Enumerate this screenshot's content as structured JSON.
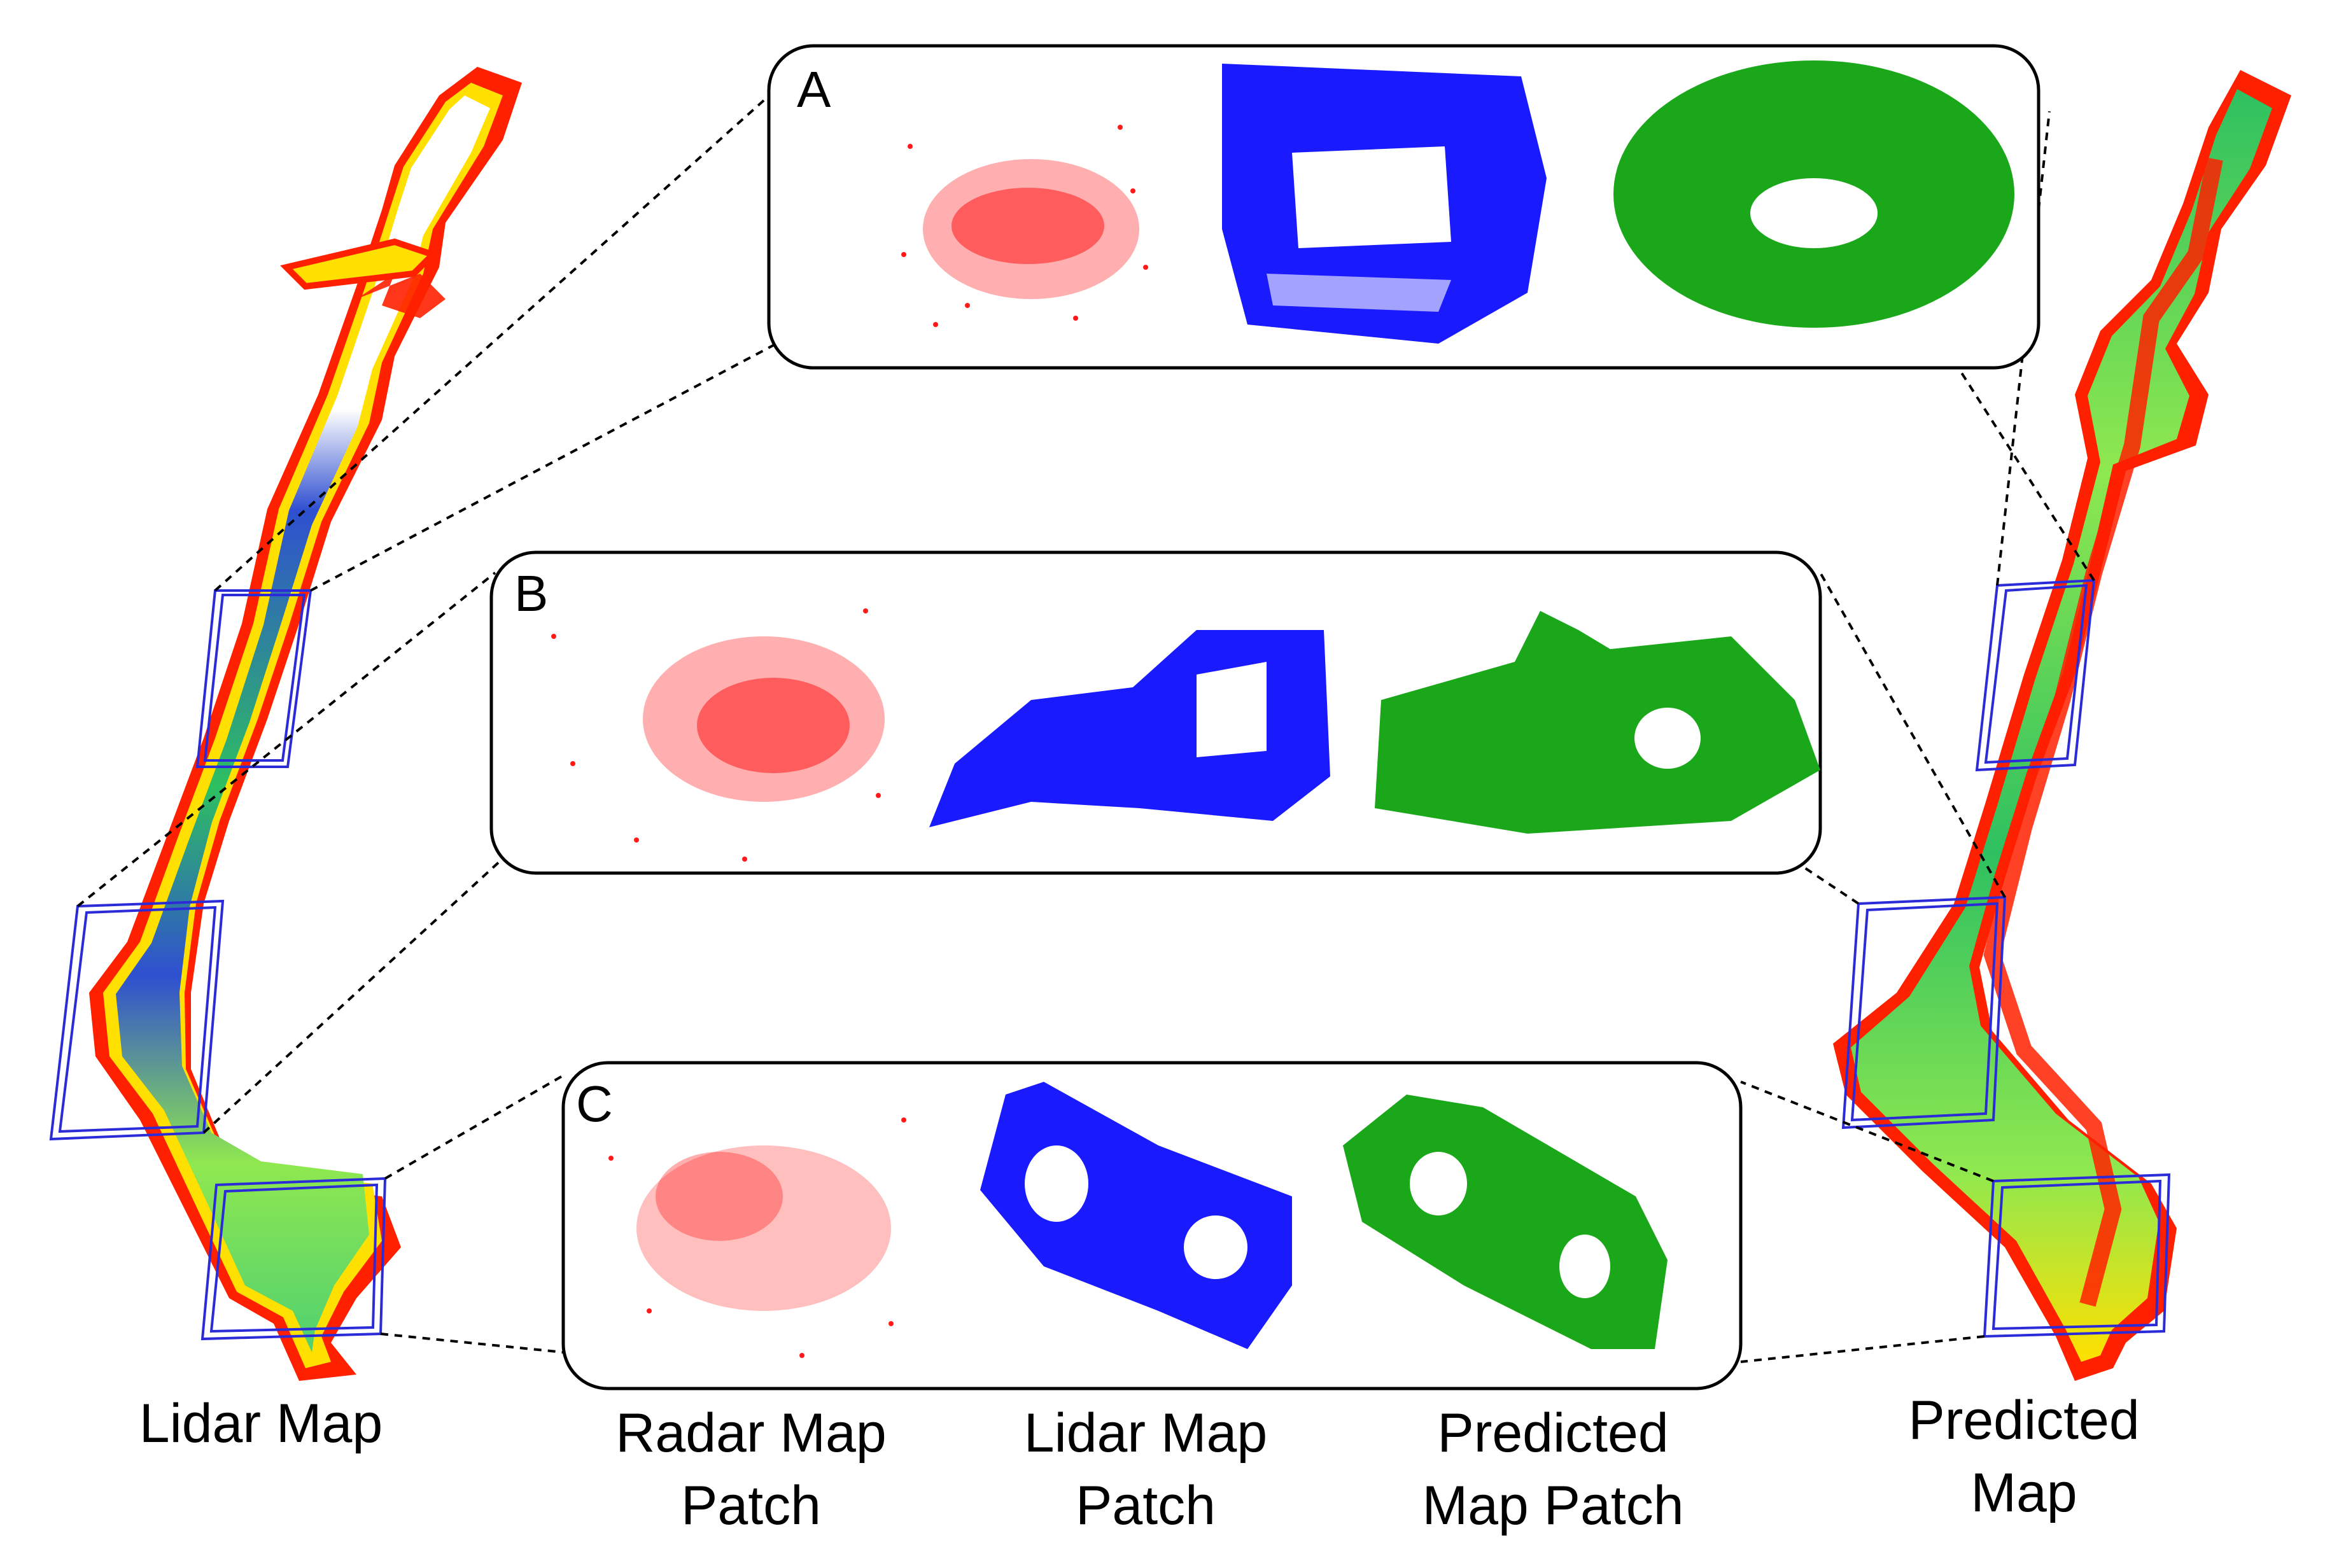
{
  "colors": {
    "radar": "#ff1a1a",
    "lidar": "#1a1aff",
    "predicted": "#1aa81a",
    "map_red": "#ff2000",
    "map_yellow": "#ffe000",
    "map_lightgreen": "#8fe84f",
    "map_green": "#2ec060",
    "map_blue": "#2f4fd0",
    "box": "#2b2bd8"
  },
  "panels": [
    {
      "label": "A"
    },
    {
      "label": "B"
    },
    {
      "label": "C"
    }
  ],
  "captions": {
    "lidar_map": "Lidar Map",
    "radar_patch_line1": "Radar Map",
    "radar_patch_line2": "Patch",
    "lidar_patch_line1": "Lidar Map",
    "lidar_patch_line2": "Patch",
    "predicted_patch_line1": "Predicted",
    "predicted_patch_line2": "Map Patch",
    "predicted_map_line1": "Predicted",
    "predicted_map_line2": "Map"
  }
}
